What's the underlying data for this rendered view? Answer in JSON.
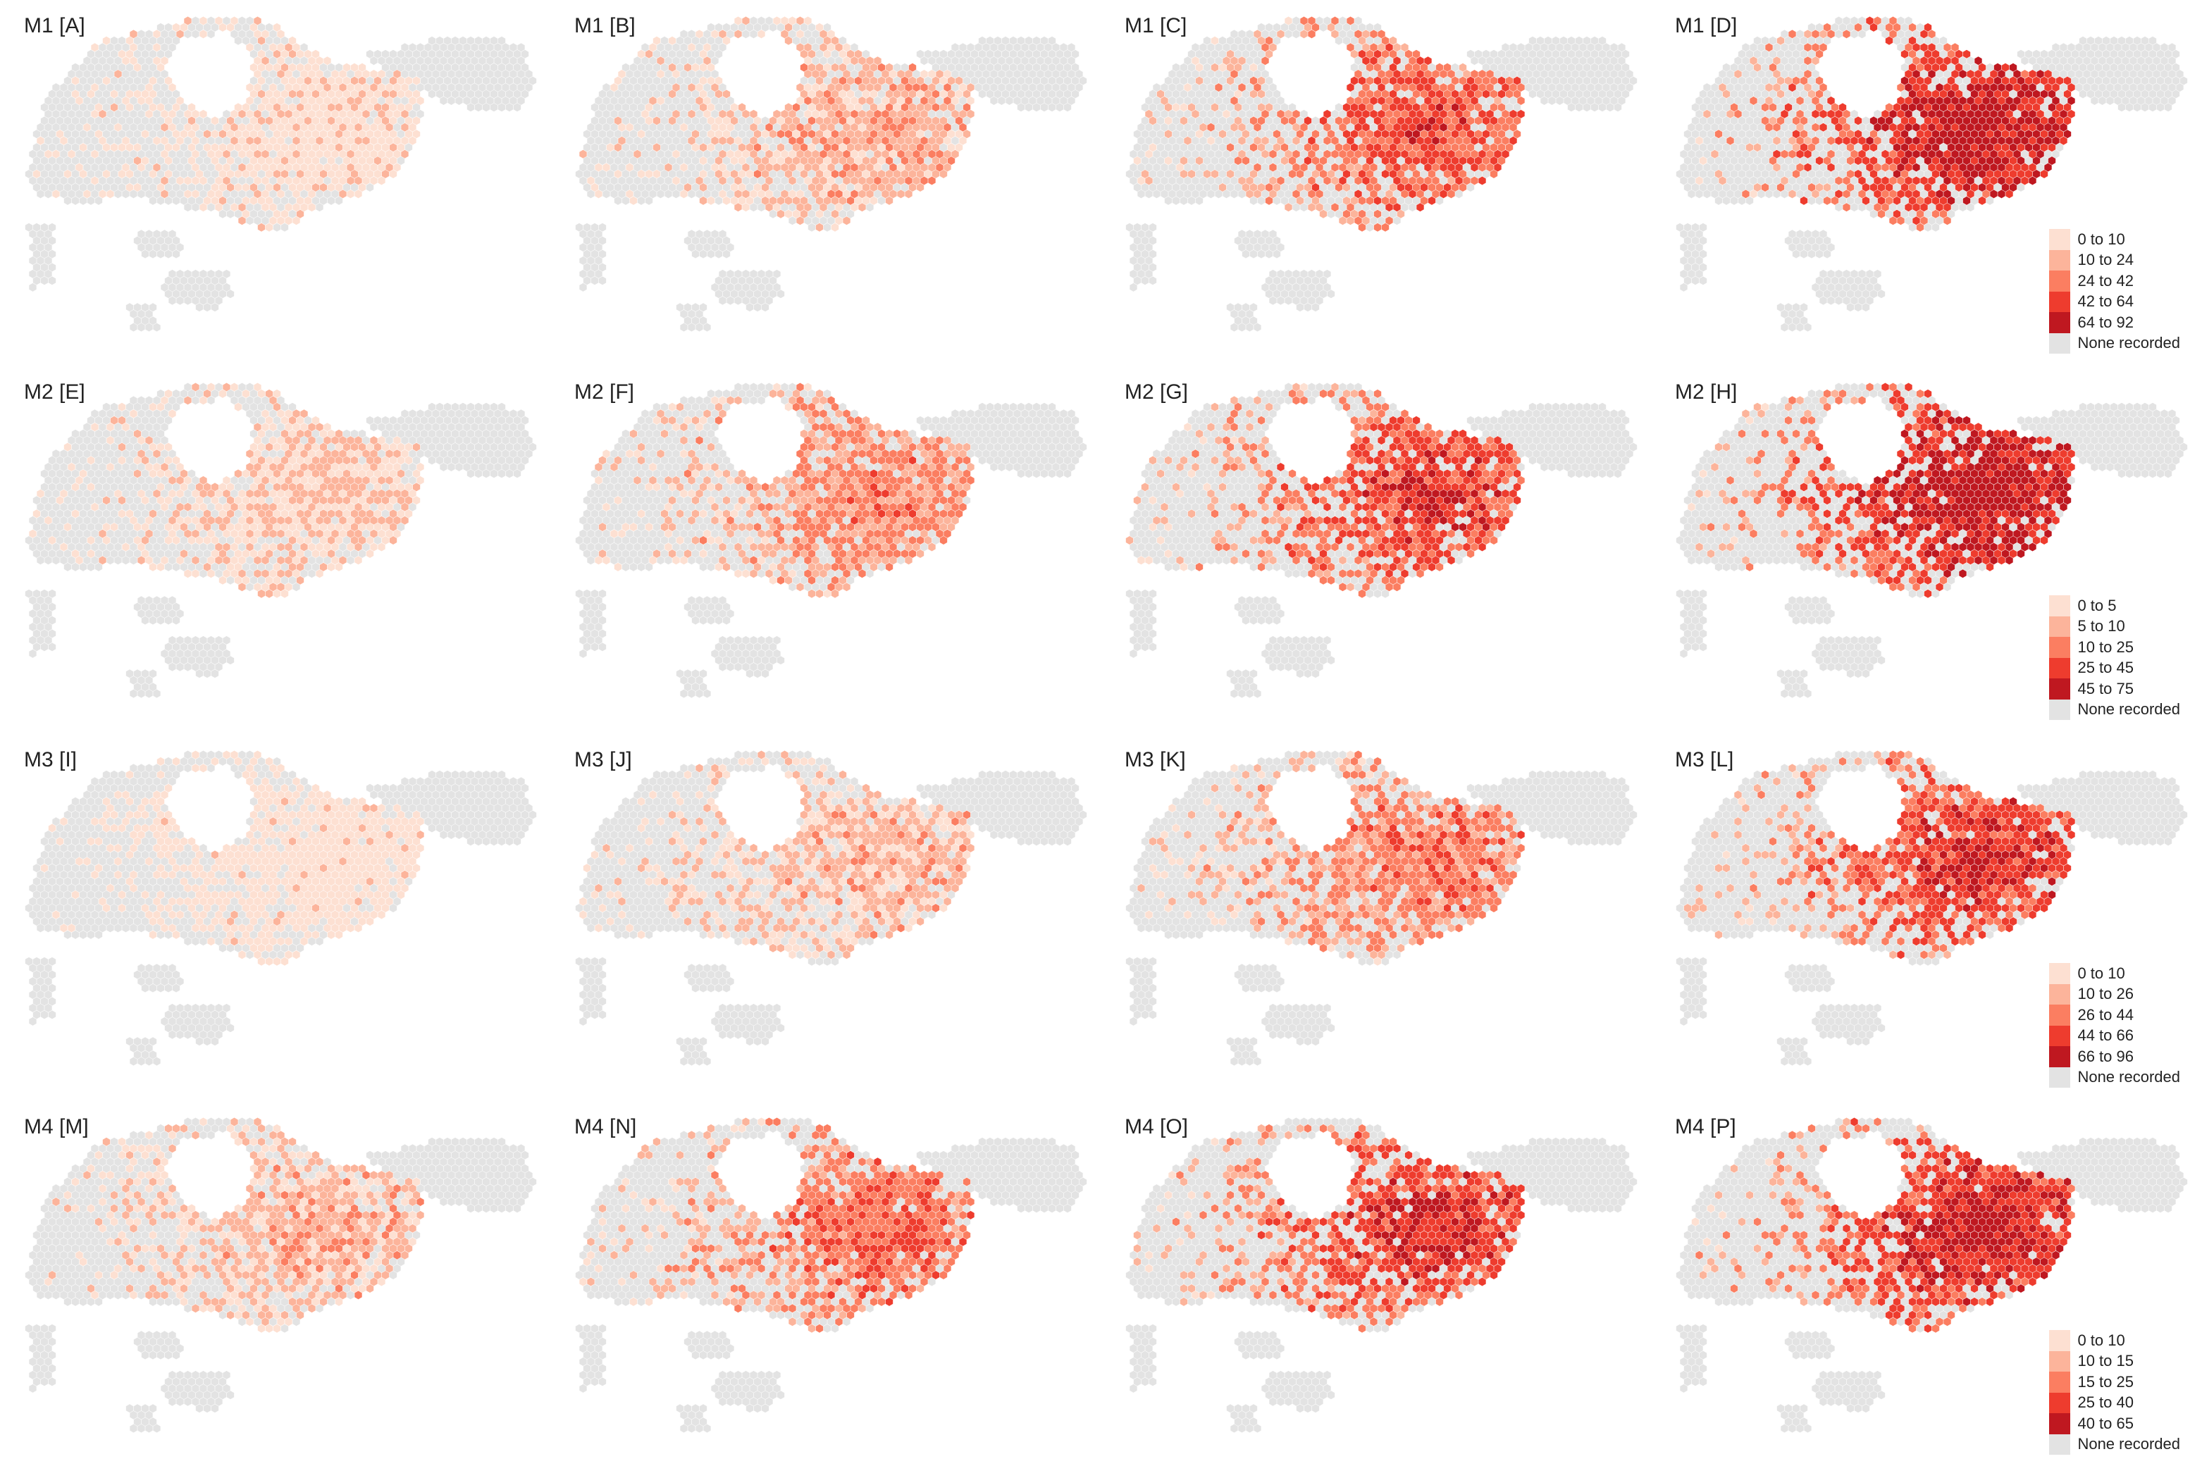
{
  "colors": {
    "none": "#e3e3e3",
    "ramp": [
      "#fde0d2",
      "#fcb49b",
      "#fb7e61",
      "#ee3c2e",
      "#bf1820"
    ]
  },
  "none_label": "None recorded",
  "rows": [
    {
      "model": "M1",
      "legend": [
        "0 to 10",
        "10 to 24",
        "24 to 42",
        "42 to 64",
        "64 to 92"
      ],
      "panels": [
        {
          "title": "M1 [A]",
          "level": 0.12
        },
        {
          "title": "M1 [B]",
          "level": 0.32
        },
        {
          "title": "M1 [C]",
          "level": 0.62
        },
        {
          "title": "M1 [D]",
          "level": 0.85
        }
      ]
    },
    {
      "model": "M2",
      "legend": [
        "0 to 5",
        "5 to 10",
        "10 to 25",
        "25 to 45",
        "45 to 75"
      ],
      "panels": [
        {
          "title": "M2 [E]",
          "level": 0.2
        },
        {
          "title": "M2 [F]",
          "level": 0.45
        },
        {
          "title": "M2 [G]",
          "level": 0.68
        },
        {
          "title": "M2 [H]",
          "level": 0.88
        }
      ]
    },
    {
      "model": "M3",
      "legend": [
        "0 to 10",
        "10 to 26",
        "26 to 44",
        "44 to 66",
        "66 to 96"
      ],
      "panels": [
        {
          "title": "M3 [I]",
          "level": 0.05
        },
        {
          "title": "M3 [J]",
          "level": 0.28
        },
        {
          "title": "M3 [K]",
          "level": 0.5
        },
        {
          "title": "M3 [L]",
          "level": 0.72
        }
      ]
    },
    {
      "model": "M4",
      "legend": [
        "0 to 10",
        "10 to 15",
        "15 to 25",
        "25 to 40",
        "40 to 65"
      ],
      "panels": [
        {
          "title": "M4 [M]",
          "level": 0.3
        },
        {
          "title": "M4 [N]",
          "level": 0.55
        },
        {
          "title": "M4 [O]",
          "level": 0.72
        },
        {
          "title": "M4 [P]",
          "level": 0.8
        }
      ]
    }
  ]
}
